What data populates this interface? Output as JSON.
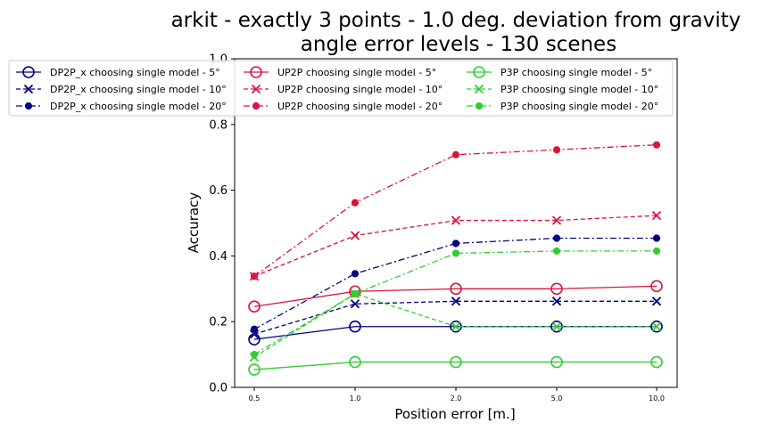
{
  "chart_data": {
    "type": "line",
    "title_line1": "arkit - exactly 3 points - 1.0 deg. deviation from gravity",
    "title_line2": "angle error levels - 130 scenes",
    "xlabel": "Position error [m.]",
    "ylabel": "Accuracy",
    "categories": [
      "0.5",
      "1.0",
      "2.0",
      "5.0",
      "10.0"
    ],
    "ylim": [
      0,
      1.0
    ],
    "yticks": [
      "0.0",
      "0.2",
      "0.4",
      "0.6",
      "0.8",
      "1.0"
    ],
    "legend_position": "upper-left",
    "series": [
      {
        "name": "DP2P_x choosing single model - 5°",
        "color": "#000080",
        "marker": "open-circle",
        "dash": "solid",
        "values": [
          0.146,
          0.185,
          0.185,
          0.185,
          0.185
        ]
      },
      {
        "name": "DP2P_x choosing single model - 10°",
        "color": "#000080",
        "marker": "x",
        "dash": "dashed",
        "values": [
          0.162,
          0.254,
          0.262,
          0.262,
          0.262
        ]
      },
      {
        "name": "DP2P_x choosing single model - 20°",
        "color": "#000080",
        "marker": "filled-circle",
        "dash": "dashdot",
        "values": [
          0.177,
          0.346,
          0.438,
          0.454,
          0.454
        ]
      },
      {
        "name": "UP2P choosing single model - 5°",
        "color": "#DC143C",
        "marker": "open-circle",
        "dash": "solid",
        "values": [
          0.246,
          0.292,
          0.3,
          0.3,
          0.308
        ]
      },
      {
        "name": "UP2P choosing single model - 10°",
        "color": "#DC143C",
        "marker": "x",
        "dash": "dashed",
        "values": [
          0.338,
          0.462,
          0.508,
          0.508,
          0.523
        ]
      },
      {
        "name": "UP2P choosing single model - 20°",
        "color": "#DC143C",
        "marker": "filled-circle",
        "dash": "dashdot",
        "values": [
          0.338,
          0.562,
          0.708,
          0.723,
          0.738
        ]
      },
      {
        "name": "P3P choosing single model - 5°",
        "color": "#32CD32",
        "marker": "open-circle",
        "dash": "solid",
        "values": [
          0.054,
          0.077,
          0.077,
          0.077,
          0.077
        ]
      },
      {
        "name": "P3P choosing single model - 10°",
        "color": "#32CD32",
        "marker": "x",
        "dash": "dashed",
        "values": [
          0.092,
          0.285,
          0.185,
          0.185,
          0.185
        ]
      },
      {
        "name": "P3P choosing single model - 20°",
        "color": "#32CD32",
        "marker": "filled-circle",
        "dash": "dashdot",
        "values": [
          0.1,
          0.285,
          0.408,
          0.415,
          0.415
        ]
      }
    ]
  }
}
